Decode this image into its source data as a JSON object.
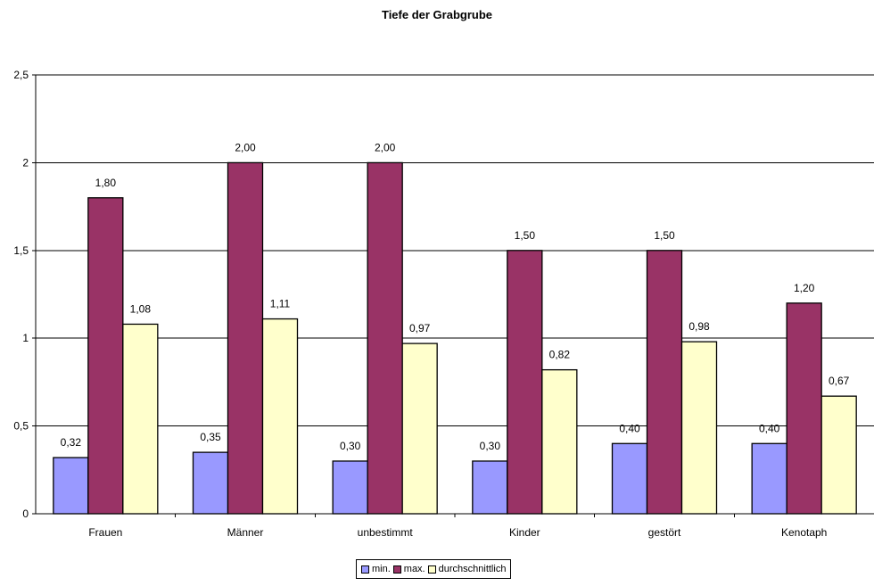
{
  "chart_data": {
    "type": "bar",
    "title": "Tiefe der Grabgrube",
    "xlabel": "",
    "ylabel": "",
    "ylim": [
      0,
      2.5
    ],
    "yticks": [
      0,
      0.5,
      1,
      1.5,
      2,
      2.5
    ],
    "ytick_labels": [
      "0",
      "0,5",
      "1",
      "1,5",
      "2",
      "2,5"
    ],
    "grid": true,
    "legend_position": "bottom-center",
    "categories": [
      "Frauen",
      "Männer",
      "unbestimmt",
      "Kinder",
      "gestört",
      "Kenotaph"
    ],
    "series": [
      {
        "name": "min.",
        "color": "#9999ff",
        "values": [
          0.32,
          0.35,
          0.3,
          0.3,
          0.4,
          0.4
        ],
        "labels": [
          "0,32",
          "0,35",
          "0,30",
          "0,30",
          "0,40",
          "0,40"
        ]
      },
      {
        "name": "max.",
        "color": "#993366",
        "values": [
          1.8,
          2.0,
          2.0,
          1.5,
          1.5,
          1.2
        ],
        "labels": [
          "1,80",
          "2,00",
          "2,00",
          "1,50",
          "1,50",
          "1,20"
        ]
      },
      {
        "name": "durchschnittlich",
        "color": "#ffffcc",
        "values": [
          1.08,
          1.11,
          0.97,
          0.82,
          0.98,
          0.67
        ],
        "labels": [
          "1,08",
          "1,11",
          "0,97",
          "0,82",
          "0,98",
          "0,67"
        ]
      }
    ]
  }
}
